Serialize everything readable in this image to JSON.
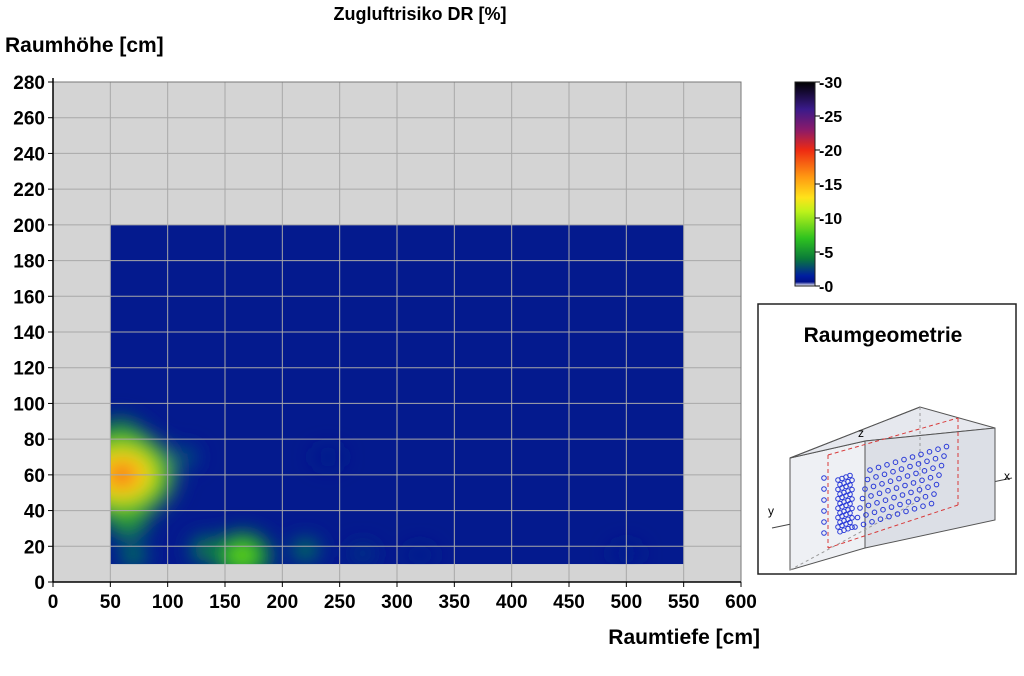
{
  "chart_data": {
    "type": "heatmap",
    "title": "Zugluftrisiko DR [%]",
    "xlabel": "Raumtiefe [cm]",
    "ylabel": "Raumhöhe [cm]",
    "xlim": [
      0,
      600
    ],
    "ylim": [
      0,
      280
    ],
    "x_ticks": [
      "0",
      "50",
      "100",
      "150",
      "200",
      "250",
      "300",
      "350",
      "400",
      "450",
      "500",
      "550",
      "600"
    ],
    "y_ticks": [
      "0",
      "20",
      "40",
      "60",
      "80",
      "100",
      "120",
      "140",
      "160",
      "180",
      "200",
      "220",
      "240",
      "260",
      "280"
    ],
    "grid": true,
    "data_region": {
      "x": [
        50,
        550
      ],
      "y": [
        10,
        200
      ]
    },
    "background_value": 0,
    "hotspots": [
      {
        "x": 60,
        "y": 60,
        "value": 19
      },
      {
        "x": 58,
        "y": 80,
        "value": 9
      },
      {
        "x": 65,
        "y": 35,
        "value": 8
      },
      {
        "x": 70,
        "y": 15,
        "value": 5
      },
      {
        "x": 115,
        "y": 70,
        "value": 4
      },
      {
        "x": 165,
        "y": 15,
        "value": 10
      },
      {
        "x": 135,
        "y": 18,
        "value": 6
      },
      {
        "x": 220,
        "y": 18,
        "value": 5
      },
      {
        "x": 270,
        "y": 16,
        "value": 3
      },
      {
        "x": 320,
        "y": 15,
        "value": 2
      },
      {
        "x": 240,
        "y": 70,
        "value": 1
      },
      {
        "x": 500,
        "y": 16,
        "value": 1.5
      }
    ],
    "colorbar": {
      "min": 0,
      "max": 30,
      "ticks": [
        "30",
        "25",
        "20",
        "15",
        "10",
        "5",
        "0"
      ],
      "stops": [
        {
          "v": 0,
          "color": "#ffffff"
        },
        {
          "v": 0.6,
          "color": "#00108a"
        },
        {
          "v": 1.5,
          "color": "#001ea0"
        },
        {
          "v": 4,
          "color": "#0a7a3a"
        },
        {
          "v": 7,
          "color": "#2ec21f"
        },
        {
          "v": 11,
          "color": "#bff21a"
        },
        {
          "v": 13,
          "color": "#ffe31a"
        },
        {
          "v": 16,
          "color": "#ff9a12"
        },
        {
          "v": 20,
          "color": "#ee2a12"
        },
        {
          "v": 23,
          "color": "#8a1a6a"
        },
        {
          "v": 26,
          "color": "#3a1a8a"
        },
        {
          "v": 30,
          "color": "#000000"
        }
      ]
    }
  },
  "inset": {
    "title": "Raumgeometrie",
    "axis_labels": {
      "x": "x",
      "y": "y",
      "z": "z"
    }
  },
  "colors": {
    "plot_background": "#d4d4d4",
    "data_background": "#041a8e",
    "grid": "#a8a8a8",
    "inset_dashed": "#d83a3a",
    "inset_points": "#2a3ad8"
  }
}
